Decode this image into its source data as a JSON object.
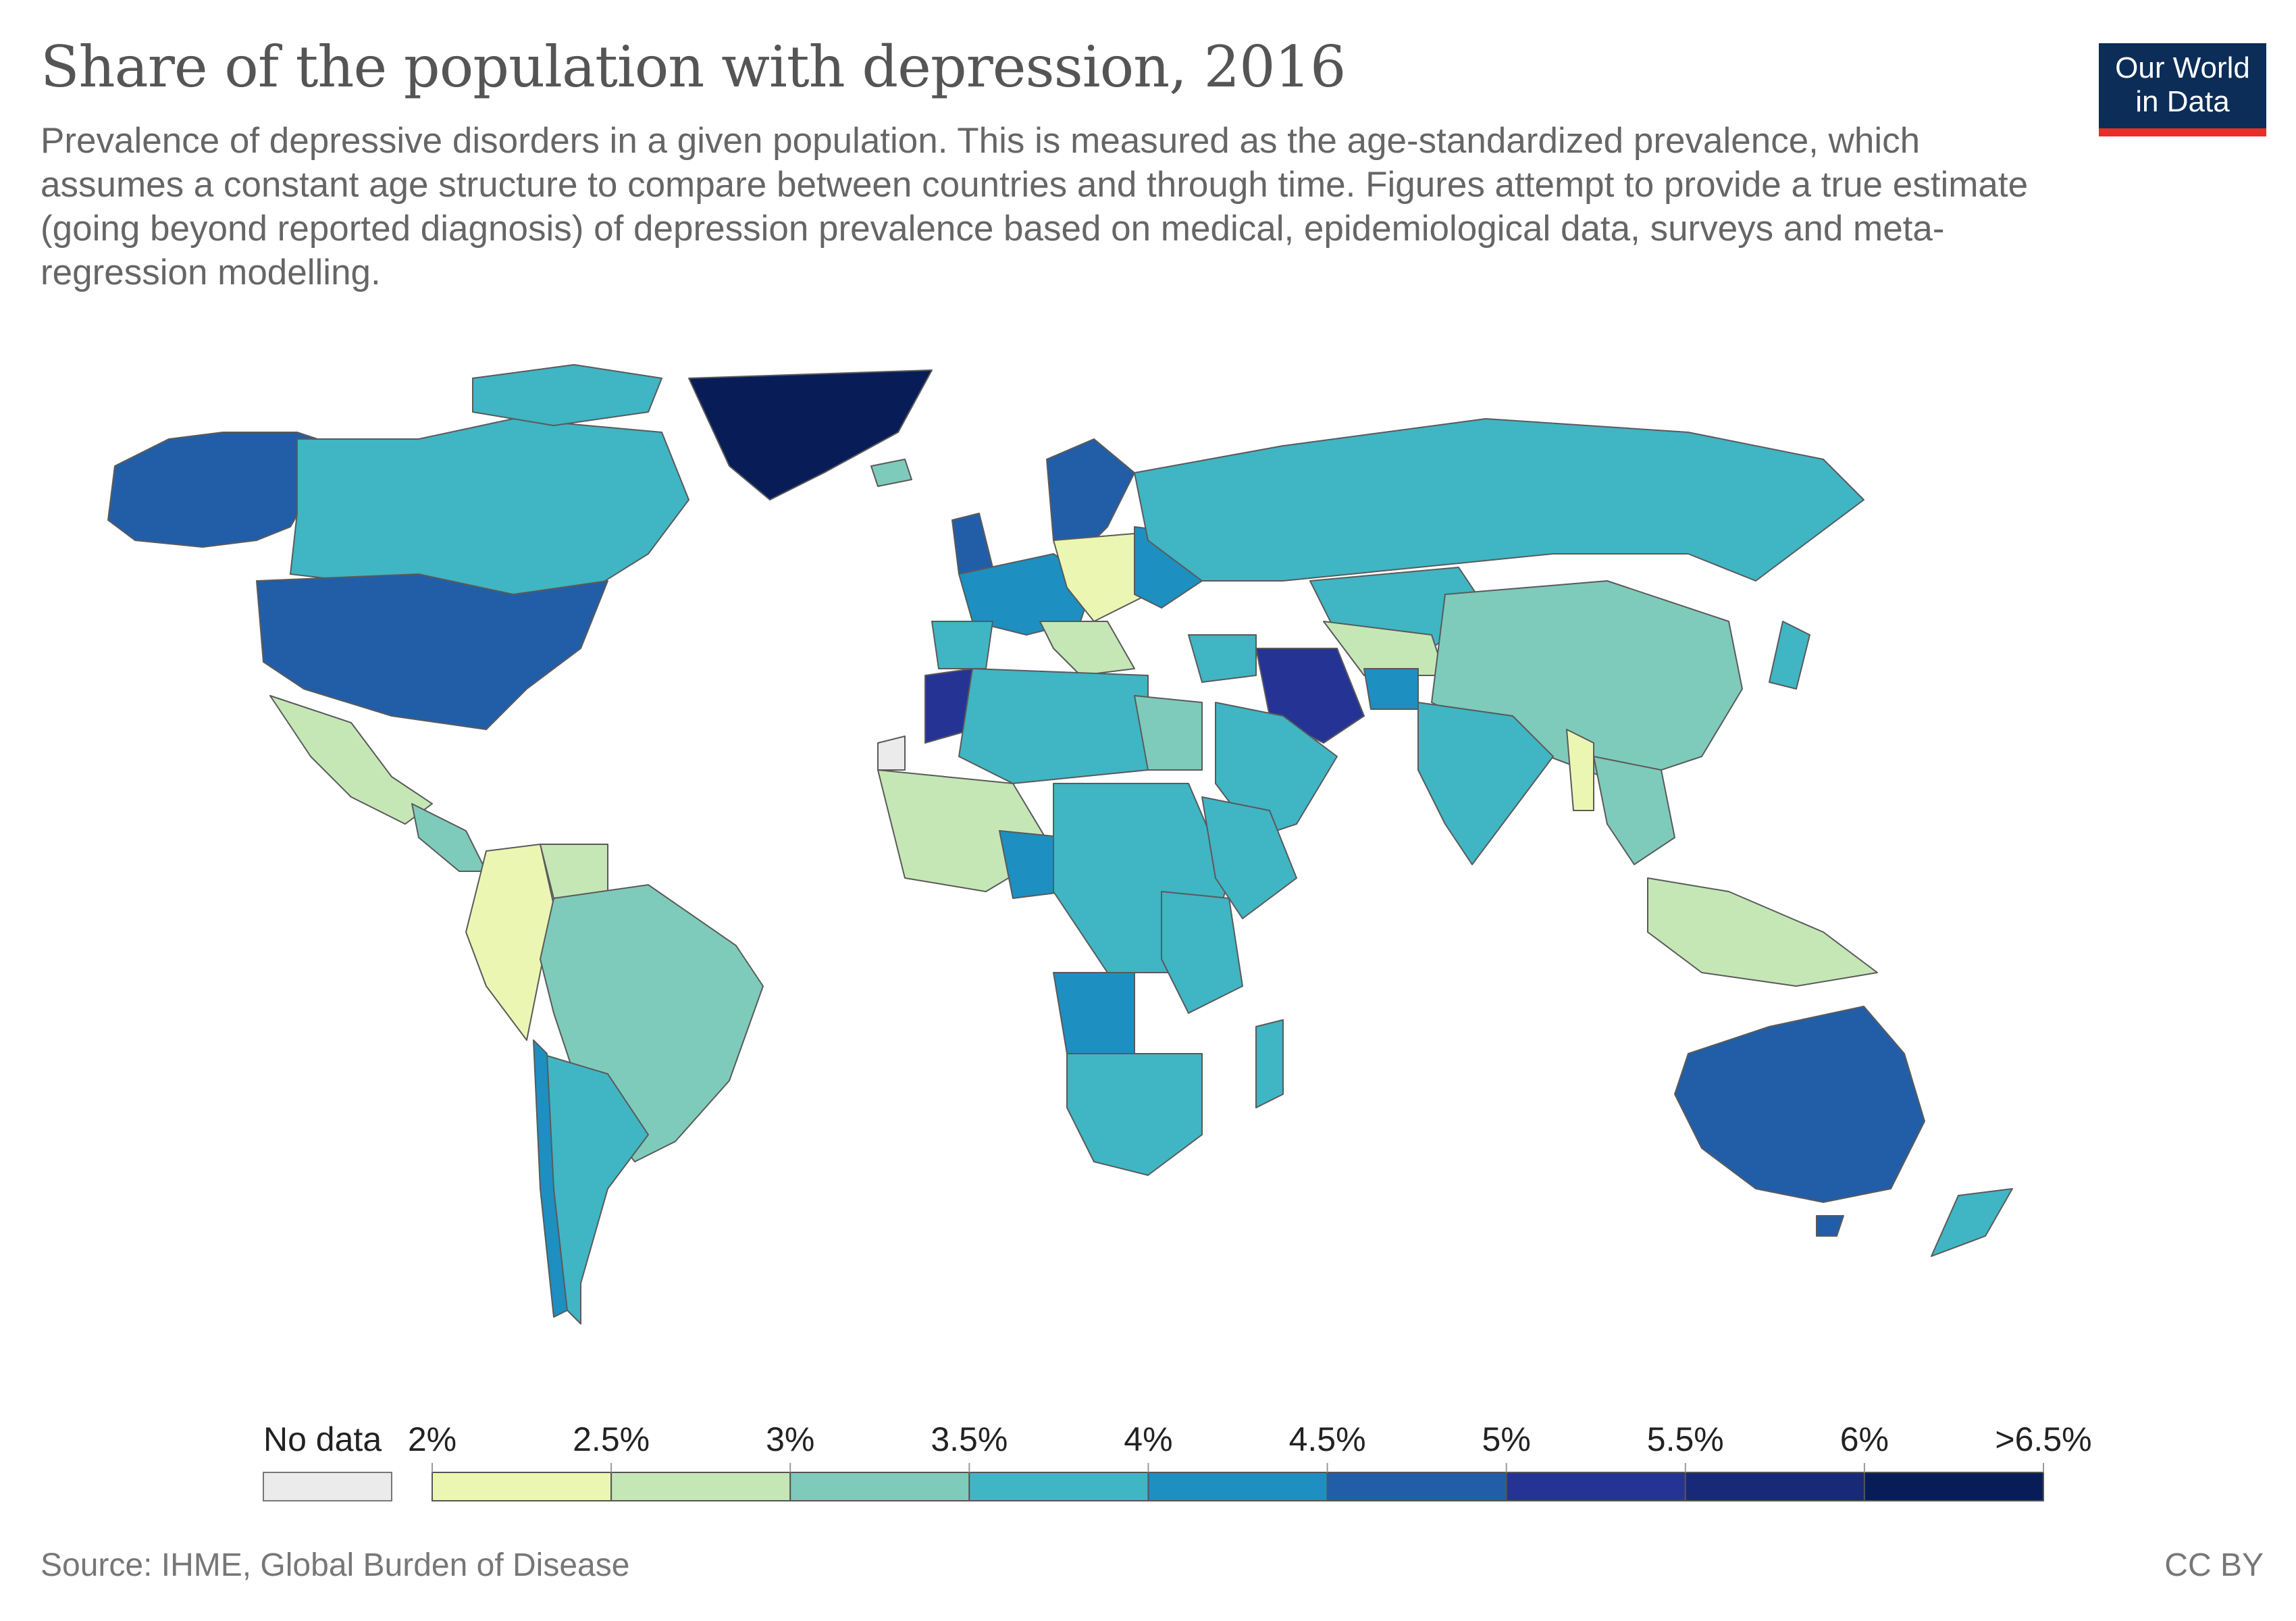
{
  "header": {
    "title": "Share of the population with depression, 2016",
    "subtitle": "Prevalence of depressive disorders in a given population. This is measured as the age-standardized prevalence, which assumes a constant age structure to compare between countries and through time. Figures attempt to provide a true estimate (going beyond reported diagnosis) of depression prevalence based on medical, epidemiological data, surveys and meta-regression modelling."
  },
  "logo": {
    "line1": "Our World",
    "line2": "in Data"
  },
  "legend": {
    "no_data_label": "No data",
    "no_data_color": "#ebebeb",
    "ticks": [
      "2%",
      "2.5%",
      "3%",
      "3.5%",
      "4%",
      "4.5%",
      "5%",
      "5.5%",
      "6%",
      ">6.5%"
    ],
    "bins": [
      "#ecf6b3",
      "#c5e7b6",
      "#7ecbbb",
      "#40b5c4",
      "#1d8fc1",
      "#225ea8",
      "#253494",
      "#182a77",
      "#081d58"
    ]
  },
  "footer": {
    "source": "Source: IHME, Global Burden of Disease",
    "license": "CC BY"
  }
}
